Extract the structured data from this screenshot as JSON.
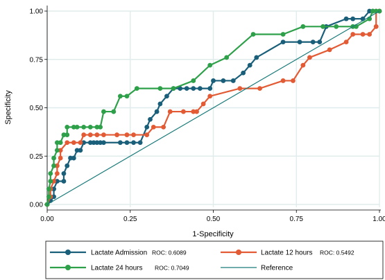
{
  "chart_data": {
    "type": "line",
    "xlabel": "1-Specificity",
    "ylabel": "Specificity",
    "xlim": [
      0,
      1
    ],
    "ylim": [
      0,
      1
    ],
    "xticks": [
      "0.00",
      "0.25",
      "0.50",
      "0.75",
      "1.00"
    ],
    "yticks": [
      "0.00",
      "0.25",
      "0.50",
      "0.75",
      "1.00"
    ],
    "grid": true,
    "legend_position": "bottom",
    "series": [
      {
        "name": "Lactate Admission",
        "roc_label": "ROC: 0.6089",
        "color": "#1a5f7a",
        "markers": true,
        "points": [
          [
            0,
            0
          ],
          [
            0.01,
            0.02
          ],
          [
            0.02,
            0.04
          ],
          [
            0.02,
            0.08
          ],
          [
            0.03,
            0.12
          ],
          [
            0.05,
            0.12
          ],
          [
            0.05,
            0.16
          ],
          [
            0.06,
            0.2
          ],
          [
            0.07,
            0.24
          ],
          [
            0.08,
            0.24
          ],
          [
            0.09,
            0.28
          ],
          [
            0.1,
            0.28
          ],
          [
            0.11,
            0.32
          ],
          [
            0.13,
            0.32
          ],
          [
            0.14,
            0.32
          ],
          [
            0.15,
            0.32
          ],
          [
            0.16,
            0.32
          ],
          [
            0.17,
            0.32
          ],
          [
            0.22,
            0.32
          ],
          [
            0.24,
            0.32
          ],
          [
            0.26,
            0.32
          ],
          [
            0.28,
            0.32
          ],
          [
            0.3,
            0.4
          ],
          [
            0.31,
            0.44
          ],
          [
            0.33,
            0.48
          ],
          [
            0.34,
            0.52
          ],
          [
            0.36,
            0.56
          ],
          [
            0.38,
            0.6
          ],
          [
            0.4,
            0.6
          ],
          [
            0.42,
            0.6
          ],
          [
            0.44,
            0.6
          ],
          [
            0.46,
            0.6
          ],
          [
            0.49,
            0.6
          ],
          [
            0.5,
            0.64
          ],
          [
            0.53,
            0.64
          ],
          [
            0.56,
            0.64
          ],
          [
            0.59,
            0.68
          ],
          [
            0.61,
            0.72
          ],
          [
            0.63,
            0.76
          ],
          [
            0.71,
            0.84
          ],
          [
            0.76,
            0.84
          ],
          [
            0.8,
            0.84
          ],
          [
            0.82,
            0.84
          ],
          [
            0.84,
            0.92
          ],
          [
            0.9,
            0.96
          ],
          [
            0.92,
            0.96
          ],
          [
            0.95,
            0.96
          ],
          [
            0.97,
            1.0
          ],
          [
            0.98,
            1.0
          ],
          [
            1.0,
            1.0
          ]
        ]
      },
      {
        "name": "Lactate 12 hours",
        "roc_label": "ROC: 0.5492",
        "color": "#e25b35",
        "markers": true,
        "points": [
          [
            0,
            0
          ],
          [
            0.01,
            0.04
          ],
          [
            0.01,
            0.08
          ],
          [
            0.02,
            0.12
          ],
          [
            0.03,
            0.16
          ],
          [
            0.03,
            0.2
          ],
          [
            0.04,
            0.24
          ],
          [
            0.04,
            0.28
          ],
          [
            0.06,
            0.32
          ],
          [
            0.08,
            0.32
          ],
          [
            0.1,
            0.32
          ],
          [
            0.11,
            0.36
          ],
          [
            0.13,
            0.36
          ],
          [
            0.15,
            0.36
          ],
          [
            0.17,
            0.36
          ],
          [
            0.21,
            0.36
          ],
          [
            0.24,
            0.36
          ],
          [
            0.26,
            0.36
          ],
          [
            0.3,
            0.36
          ],
          [
            0.32,
            0.4
          ],
          [
            0.35,
            0.4
          ],
          [
            0.37,
            0.48
          ],
          [
            0.41,
            0.48
          ],
          [
            0.44,
            0.48
          ],
          [
            0.45,
            0.48
          ],
          [
            0.47,
            0.52
          ],
          [
            0.49,
            0.56
          ],
          [
            0.58,
            0.6
          ],
          [
            0.64,
            0.6
          ],
          [
            0.71,
            0.64
          ],
          [
            0.74,
            0.64
          ],
          [
            0.77,
            0.72
          ],
          [
            0.79,
            0.76
          ],
          [
            0.85,
            0.8
          ],
          [
            0.9,
            0.84
          ],
          [
            0.92,
            0.88
          ],
          [
            0.95,
            0.88
          ],
          [
            0.97,
            0.88
          ],
          [
            0.99,
            0.92
          ],
          [
            0.99,
            1.0
          ],
          [
            1.0,
            1.0
          ]
        ]
      },
      {
        "name": "Lactate 24 hours",
        "roc_label": "ROC: 0.7049",
        "color": "#2ea04a",
        "markers": true,
        "points": [
          [
            0,
            0
          ],
          [
            0.005,
            0.04
          ],
          [
            0.005,
            0.08
          ],
          [
            0.01,
            0.12
          ],
          [
            0.01,
            0.16
          ],
          [
            0.02,
            0.2
          ],
          [
            0.02,
            0.24
          ],
          [
            0.03,
            0.28
          ],
          [
            0.03,
            0.32
          ],
          [
            0.04,
            0.32
          ],
          [
            0.05,
            0.36
          ],
          [
            0.06,
            0.36
          ],
          [
            0.06,
            0.4
          ],
          [
            0.08,
            0.4
          ],
          [
            0.09,
            0.4
          ],
          [
            0.11,
            0.4
          ],
          [
            0.13,
            0.4
          ],
          [
            0.15,
            0.4
          ],
          [
            0.16,
            0.4
          ],
          [
            0.17,
            0.48
          ],
          [
            0.2,
            0.48
          ],
          [
            0.22,
            0.56
          ],
          [
            0.24,
            0.56
          ],
          [
            0.27,
            0.6
          ],
          [
            0.34,
            0.6
          ],
          [
            0.38,
            0.6
          ],
          [
            0.44,
            0.64
          ],
          [
            0.49,
            0.72
          ],
          [
            0.54,
            0.76
          ],
          [
            0.62,
            0.88
          ],
          [
            0.71,
            0.88
          ],
          [
            0.77,
            0.92
          ],
          [
            0.83,
            0.92
          ],
          [
            0.87,
            0.92
          ],
          [
            0.92,
            0.92
          ],
          [
            0.93,
            0.92
          ],
          [
            0.97,
            0.96
          ],
          [
            0.98,
            1.0
          ],
          [
            0.99,
            1.0
          ],
          [
            1.0,
            1.0
          ]
        ]
      },
      {
        "name": "Reference",
        "roc_label": "",
        "color": "#1a7a7a",
        "markers": false,
        "points": [
          [
            0,
            0
          ],
          [
            1,
            1
          ]
        ]
      }
    ]
  }
}
